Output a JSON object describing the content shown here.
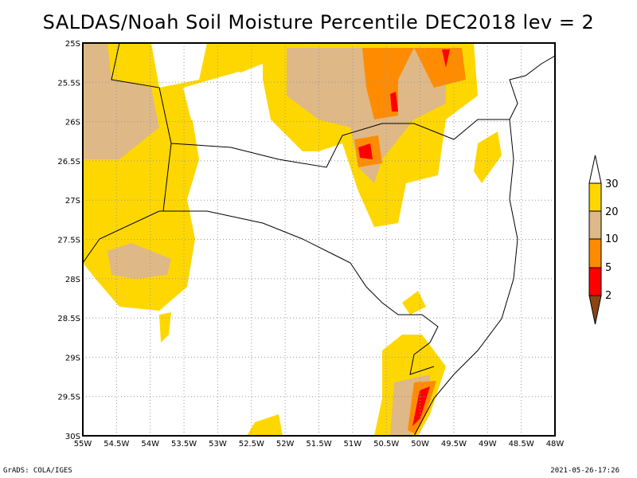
{
  "title": "SALDAS/Noah Soil Moisture Percentile DEC2018 lev = 2",
  "x_ticks": [
    "55W",
    "54.5W",
    "54W",
    "53.5W",
    "53W",
    "52.5W",
    "52W",
    "51.5W",
    "51W",
    "50.5W",
    "50W",
    "49.5W",
    "49W",
    "48.5W",
    "48W"
  ],
  "y_ticks": [
    "25S",
    "25.5S",
    "26S",
    "26.5S",
    "27S",
    "27.5S",
    "28S",
    "28.5S",
    "29S",
    "29.5S",
    "30S"
  ],
  "legend": {
    "labels": [
      "2",
      "5",
      "10",
      "20",
      "30"
    ],
    "colors": [
      "#8B4513",
      "#FF0000",
      "#FF8C00",
      "#DEB887",
      "#FFD700",
      "#FFFFFF"
    ]
  },
  "colors": {
    "yellow": "#FFD700",
    "tan": "#DEB887",
    "orange": "#FF8C00",
    "red": "#FF0000",
    "brown": "#8B4513"
  },
  "footer": {
    "left": "GrADS: COLA/IGES",
    "right": "2021-05-26-17:26"
  }
}
